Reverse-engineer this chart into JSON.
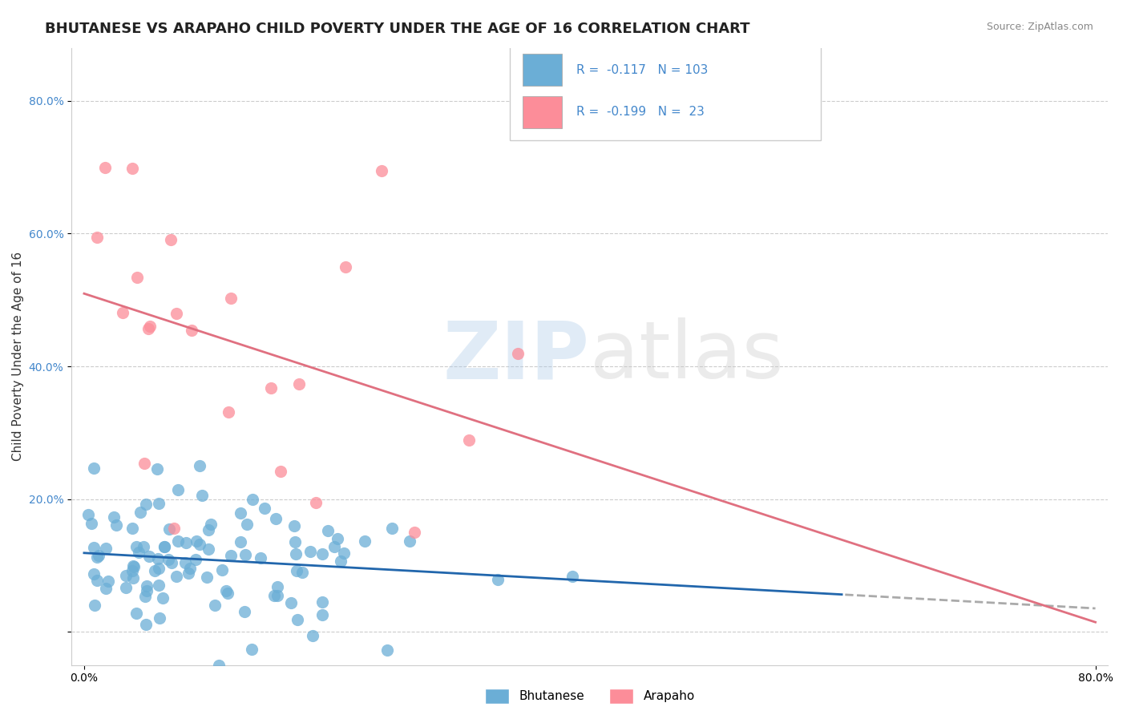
{
  "title": "BHUTANESE VS ARAPAHO CHILD POVERTY UNDER THE AGE OF 16 CORRELATION CHART",
  "source": "Source: ZipAtlas.com",
  "ylabel": "Child Poverty Under the Age of 16",
  "xlabel": "",
  "xmin": 0.0,
  "xmax": 0.8,
  "ymin": -0.05,
  "ymax": 0.88,
  "ytick_vals": [
    0.0,
    0.2,
    0.4,
    0.6,
    0.8
  ],
  "ytick_labels": [
    "",
    "20.0%",
    "40.0%",
    "60.0%",
    "80.0%"
  ],
  "xtick_vals": [
    0.0,
    0.8
  ],
  "xtick_labels": [
    "0.0%",
    "80.0%"
  ],
  "bhutanese_color": "#6baed6",
  "arapaho_color": "#fc8d99",
  "bhutanese_r": -0.117,
  "bhutanese_n": 103,
  "arapaho_r": -0.199,
  "arapaho_n": 23,
  "blue_line_color": "#2166ac",
  "pink_line_color": "#e07080",
  "dashed_line_color": "#aaaaaa",
  "background_color": "#ffffff",
  "grid_color": "#cccccc",
  "title_fontsize": 13,
  "axis_label_fontsize": 11,
  "tick_label_fontsize": 10,
  "source_fontsize": 9,
  "legend_color": "#4488cc"
}
